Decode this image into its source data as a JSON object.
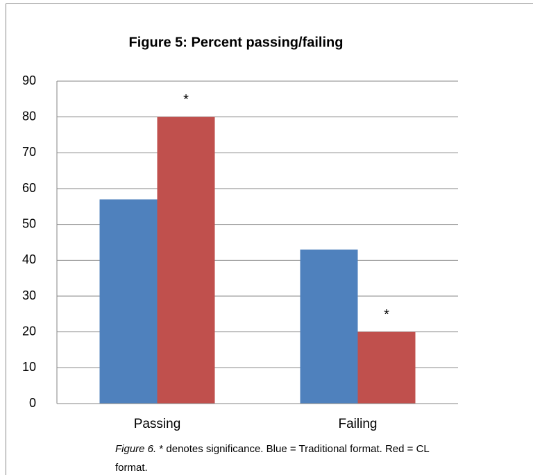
{
  "chart_data": {
    "type": "bar",
    "title": "Figure 5: Percent passing/failing",
    "categories": [
      "Passing",
      "Failing"
    ],
    "series": [
      {
        "color": "#4f81bd",
        "values": [
          57,
          43
        ]
      },
      {
        "color": "#c0504d",
        "values": [
          80,
          20
        ]
      }
    ],
    "annotations": [
      "*",
      "*"
    ],
    "ylim": [
      0,
      90
    ],
    "yticks": [
      0,
      10,
      20,
      30,
      40,
      50,
      60,
      70,
      80,
      90
    ],
    "grid": true,
    "caption_label": "Figure 6.",
    "caption_text": "* denotes significance. Blue = Traditional format. Red = CL format."
  }
}
